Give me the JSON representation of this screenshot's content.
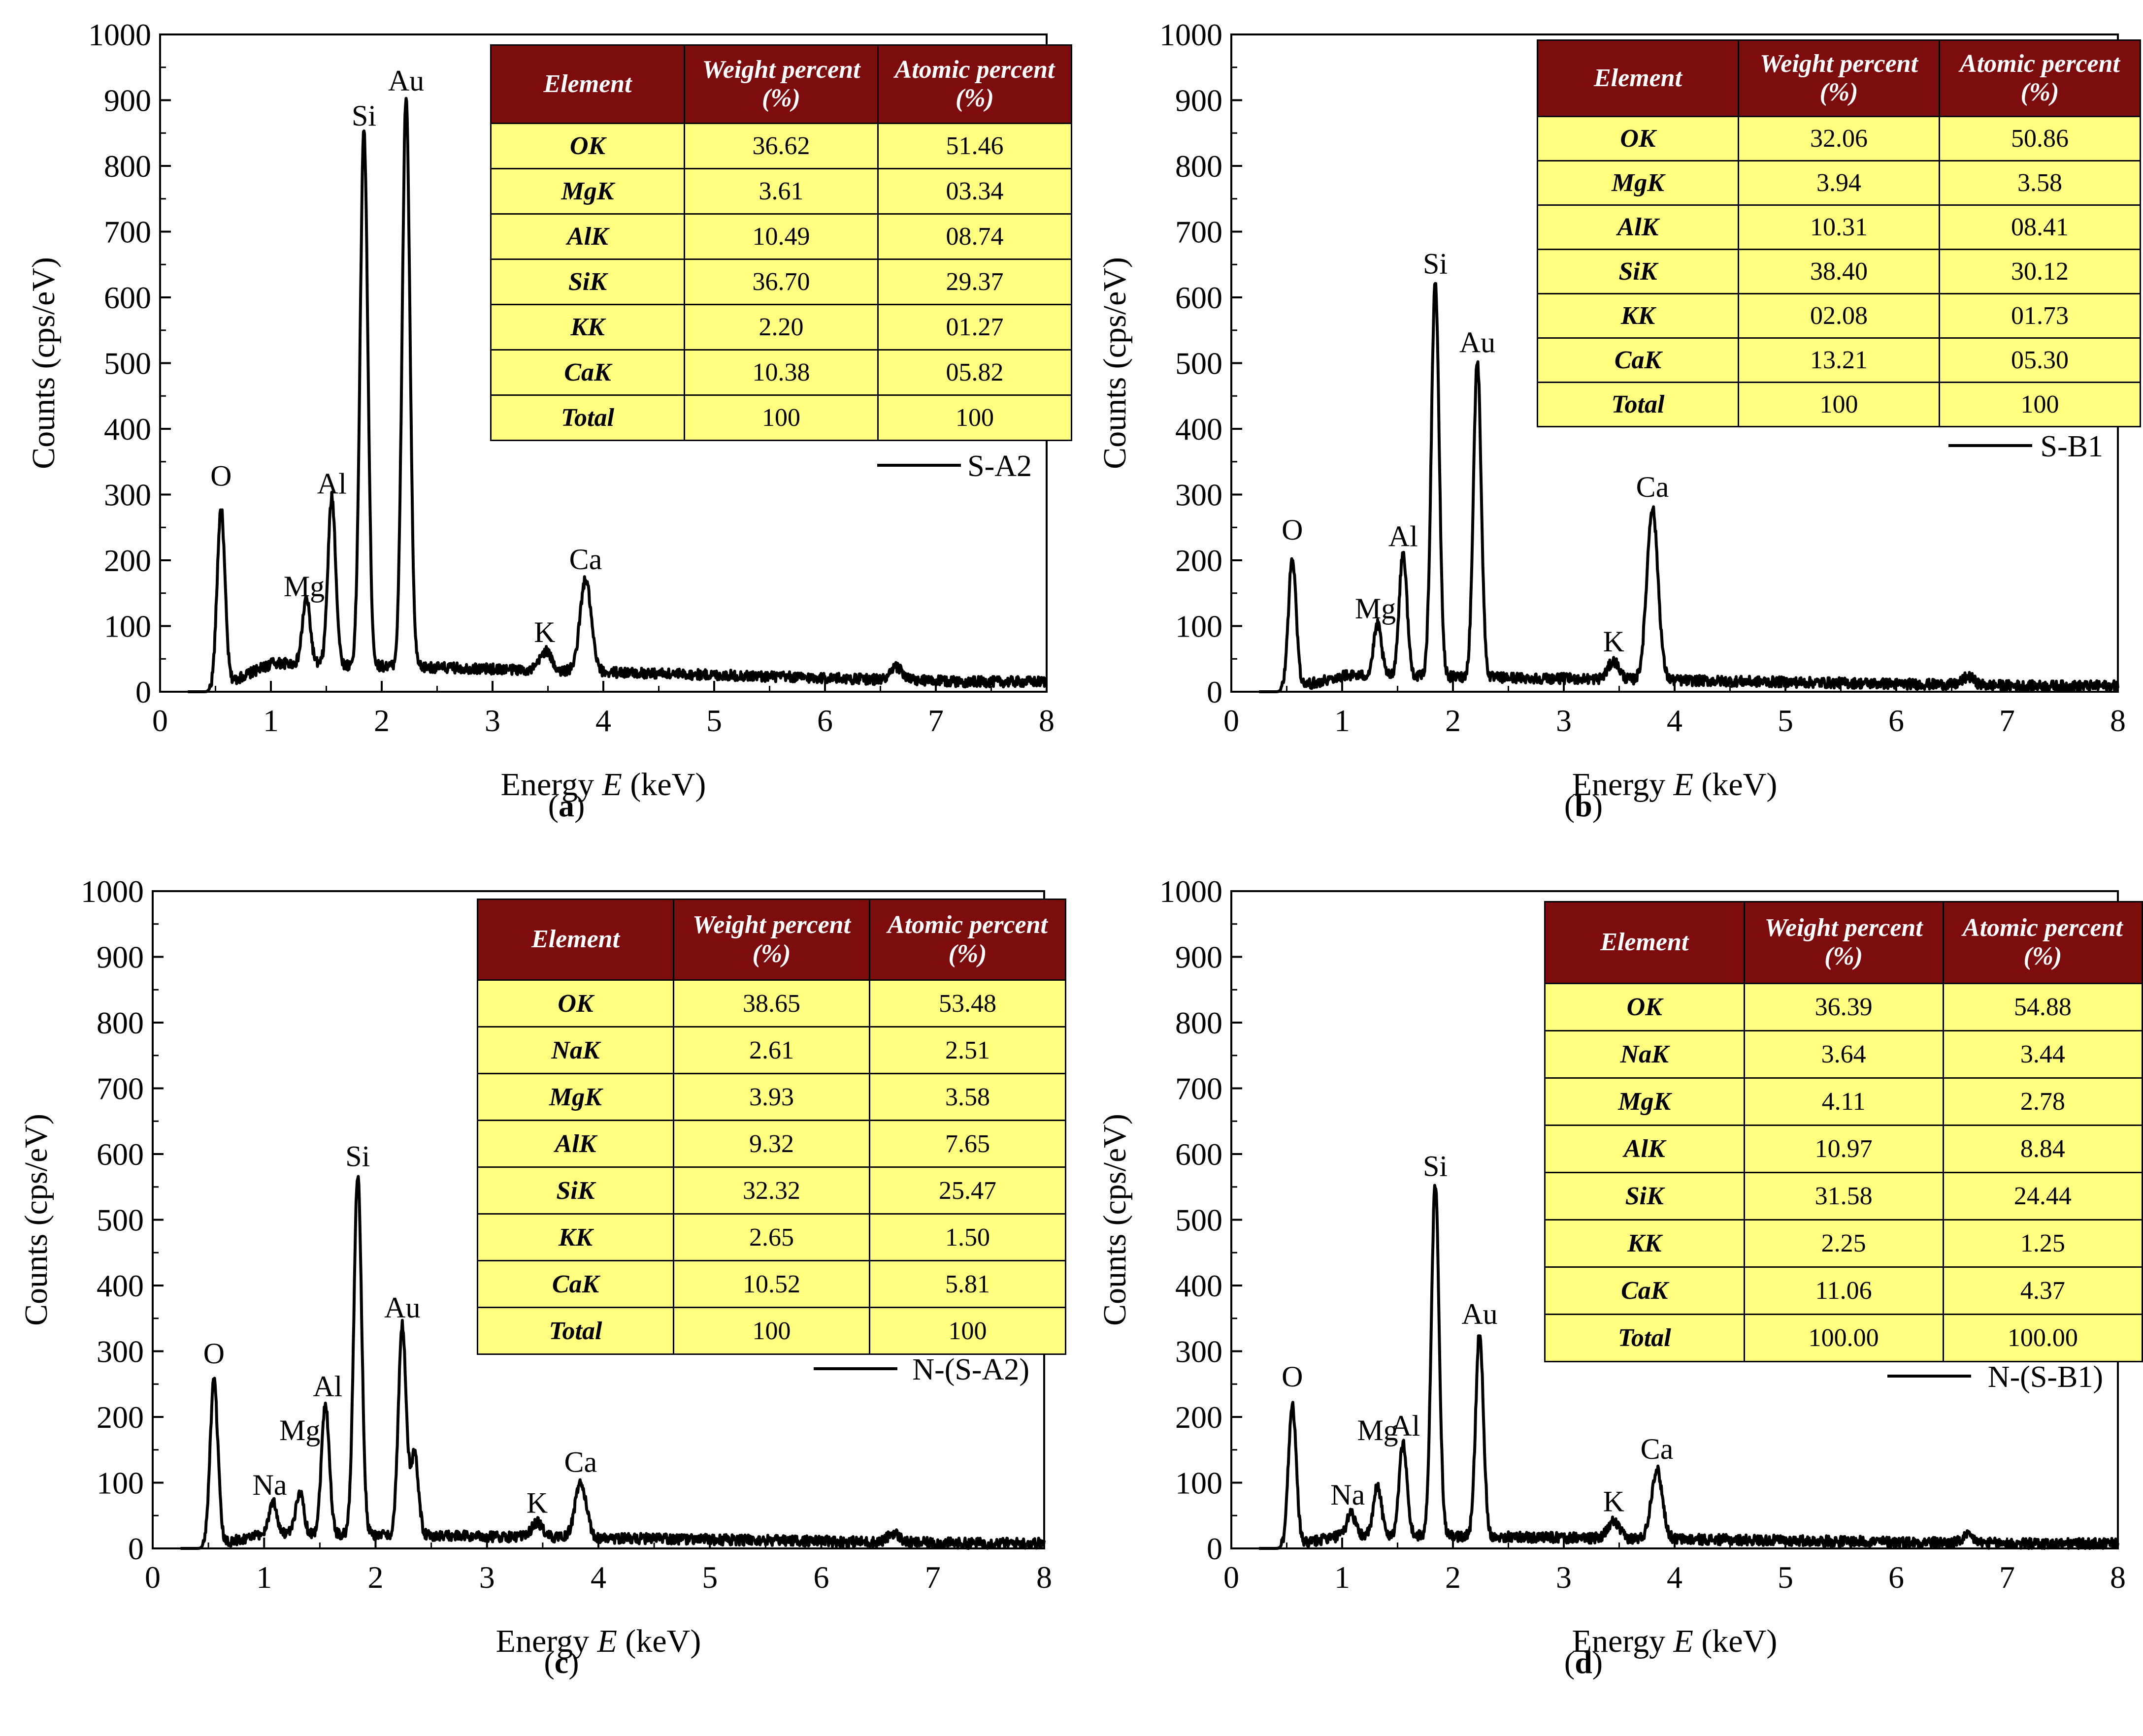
{
  "chart_data": [
    {
      "type": "line",
      "panel_label": "a",
      "xlabel_prefix": "Energy",
      "xlabel_var": "E",
      "xlabel_unit": "(keV)",
      "ylabel": "Counts (cps/eV)",
      "xlim": [
        0,
        8
      ],
      "ylim": [
        0,
        1000
      ],
      "xticks": [
        0,
        1,
        2,
        3,
        4,
        5,
        6,
        7,
        8
      ],
      "yticks": [
        0,
        100,
        200,
        300,
        400,
        500,
        600,
        700,
        800,
        900,
        1000
      ],
      "legend_position": "right",
      "series": [
        {
          "name": "S-A2",
          "peaks": [
            [
              0.55,
              300
            ],
            [
              1.32,
              130
            ],
            [
              1.55,
              285
            ],
            [
              1.84,
              845
            ],
            [
              2.22,
              898
            ],
            [
              3.48,
              60
            ],
            [
              3.84,
              170
            ],
            [
              6.65,
              50
            ]
          ],
          "baseline": 38
        }
      ],
      "peak_labels": [
        {
          "text": "O",
          "x": 0.55,
          "y": 300
        },
        {
          "text": "Mg",
          "x": 1.3,
          "y": 132
        },
        {
          "text": "Al",
          "x": 1.55,
          "y": 288
        },
        {
          "text": "Si",
          "x": 1.84,
          "y": 848
        },
        {
          "text": "Au",
          "x": 2.22,
          "y": 901
        },
        {
          "text": "K",
          "x": 3.47,
          "y": 62
        },
        {
          "text": "Ca",
          "x": 3.84,
          "y": 173
        }
      ],
      "table": {
        "headers": [
          "Element",
          "Weight percent (%)",
          "Atomic percent (%)"
        ],
        "rows": [
          [
            "OK",
            "36.62",
            "51.46"
          ],
          [
            "MgK",
            "3.61",
            "03.34"
          ],
          [
            "AlK",
            "10.49",
            "08.74"
          ],
          [
            "SiK",
            "36.70",
            "29.37"
          ],
          [
            "KK",
            "2.20",
            "01.27"
          ],
          [
            "CaK",
            "10.38",
            "05.82"
          ],
          [
            "Total",
            "100",
            "100"
          ]
        ]
      }
    },
    {
      "type": "line",
      "panel_label": "b",
      "xlabel_prefix": "Energy",
      "xlabel_var": "E",
      "xlabel_unit": "(keV)",
      "ylabel": "Counts (cps/eV)",
      "xlim": [
        0,
        8
      ],
      "ylim": [
        0,
        1000
      ],
      "xticks": [
        0,
        1,
        2,
        3,
        4,
        5,
        6,
        7,
        8
      ],
      "yticks": [
        0,
        100,
        200,
        300,
        400,
        500,
        600,
        700,
        800,
        900,
        1000
      ],
      "legend_position": "right",
      "series": [
        {
          "name": "S-B1",
          "peaks": [
            [
              0.55,
              215
            ],
            [
              1.32,
              95
            ],
            [
              1.55,
              205
            ],
            [
              1.84,
              620
            ],
            [
              2.22,
              500
            ],
            [
              3.45,
              45
            ],
            [
              3.8,
              280
            ],
            [
              6.65,
              30
            ]
          ],
          "baseline": 22
        }
      ],
      "peak_labels": [
        {
          "text": "O",
          "x": 0.55,
          "y": 218
        },
        {
          "text": "Mg",
          "x": 1.3,
          "y": 98
        },
        {
          "text": "Al",
          "x": 1.55,
          "y": 208
        },
        {
          "text": "Si",
          "x": 1.84,
          "y": 623
        },
        {
          "text": "Au",
          "x": 2.22,
          "y": 503
        },
        {
          "text": "K",
          "x": 3.45,
          "y": 48
        },
        {
          "text": "Ca",
          "x": 3.8,
          "y": 283
        }
      ],
      "table": {
        "headers": [
          "Element",
          "Weight percent (%)",
          "Atomic percent (%)"
        ],
        "rows": [
          [
            "OK",
            "32.06",
            "50.86"
          ],
          [
            "MgK",
            "3.94",
            "3.58"
          ],
          [
            "AlK",
            "10.31",
            "08.41"
          ],
          [
            "SiK",
            "38.40",
            "30.12"
          ],
          [
            "KK",
            "02.08",
            "01.73"
          ],
          [
            "CaK",
            "13.21",
            "05.30"
          ],
          [
            "Total",
            "100",
            "100"
          ]
        ]
      }
    },
    {
      "type": "line",
      "panel_label": "c",
      "xlabel_prefix": "Energy",
      "xlabel_var": "E",
      "xlabel_unit": "(keV)",
      "ylabel": "Counts (cps/eV)",
      "xlim": [
        0,
        8
      ],
      "ylim": [
        0,
        1000
      ],
      "xticks": [
        0,
        1,
        2,
        3,
        4,
        5,
        6,
        7,
        8
      ],
      "yticks": [
        0,
        100,
        200,
        300,
        400,
        500,
        600,
        700,
        800,
        900,
        1000
      ],
      "legend_position": "right",
      "series": [
        {
          "name": "N-(S-A2)",
          "peaks": [
            [
              0.55,
              265
            ],
            [
              1.08,
              65
            ],
            [
              1.32,
              80
            ],
            [
              1.55,
              215
            ],
            [
              1.84,
              565
            ],
            [
              2.24,
              335
            ],
            [
              2.35,
              140
            ],
            [
              3.45,
              38
            ],
            [
              3.84,
              100
            ],
            [
              6.65,
              30
            ]
          ],
          "baseline": 20
        }
      ],
      "peak_labels": [
        {
          "text": "O",
          "x": 0.55,
          "y": 268
        },
        {
          "text": "Na",
          "x": 1.05,
          "y": 68
        },
        {
          "text": "Mg",
          "x": 1.32,
          "y": 150
        },
        {
          "text": "Al",
          "x": 1.57,
          "y": 218
        },
        {
          "text": "Si",
          "x": 1.84,
          "y": 568
        },
        {
          "text": "Au",
          "x": 2.24,
          "y": 338
        },
        {
          "text": "K",
          "x": 3.45,
          "y": 41
        },
        {
          "text": "Ca",
          "x": 3.84,
          "y": 103
        }
      ],
      "table": {
        "headers": [
          "Element",
          "Weight percent (%)",
          "Atomic percent (%)"
        ],
        "rows": [
          [
            "OK",
            "38.65",
            "53.48"
          ],
          [
            "NaK",
            "2.61",
            "2.51"
          ],
          [
            "MgK",
            "3.93",
            "3.58"
          ],
          [
            "AlK",
            "9.32",
            "7.65"
          ],
          [
            "SiK",
            "32.32",
            "25.47"
          ],
          [
            "KK",
            "2.65",
            "1.50"
          ],
          [
            "CaK",
            "10.52",
            "5.81"
          ],
          [
            "Total",
            "100",
            "100"
          ]
        ]
      }
    },
    {
      "type": "line",
      "panel_label": "d",
      "xlabel_prefix": "Energy",
      "xlabel_var": "E",
      "xlabel_unit": "(keV)",
      "ylabel": "Counts (cps/eV)",
      "xlim": [
        0,
        8
      ],
      "ylim": [
        0,
        1000
      ],
      "xticks": [
        0,
        1,
        2,
        3,
        4,
        5,
        6,
        7,
        8
      ],
      "yticks": [
        0,
        100,
        200,
        300,
        400,
        500,
        600,
        700,
        800,
        900,
        1000
      ],
      "legend_position": "right",
      "series": [
        {
          "name": "N-(S-B1)",
          "peaks": [
            [
              0.55,
              230
            ],
            [
              1.08,
              50
            ],
            [
              1.32,
              90
            ],
            [
              1.55,
              155
            ],
            [
              1.84,
              550
            ],
            [
              2.24,
              325
            ],
            [
              3.45,
              40
            ],
            [
              3.84,
              120
            ],
            [
              6.65,
              25
            ]
          ],
          "baseline": 18
        }
      ],
      "peak_labels": [
        {
          "text": "O",
          "x": 0.55,
          "y": 233
        },
        {
          "text": "Na",
          "x": 1.05,
          "y": 53
        },
        {
          "text": "Mg",
          "x": 1.32,
          "y": 150
        },
        {
          "text": "Al",
          "x": 1.57,
          "y": 158
        },
        {
          "text": "Si",
          "x": 1.84,
          "y": 553
        },
        {
          "text": "Au",
          "x": 2.24,
          "y": 328
        },
        {
          "text": "K",
          "x": 3.45,
          "y": 43
        },
        {
          "text": "Ca",
          "x": 3.84,
          "y": 123
        }
      ],
      "table": {
        "headers": [
          "Element",
          "Weight percent (%)",
          "Atomic percent (%)"
        ],
        "rows": [
          [
            "OK",
            "36.39",
            "54.88"
          ],
          [
            "NaK",
            "3.64",
            "3.44"
          ],
          [
            "MgK",
            "4.11",
            "2.78"
          ],
          [
            "AlK",
            "10.97",
            "8.84"
          ],
          [
            "SiK",
            "31.58",
            "24.44"
          ],
          [
            "KK",
            "2.25",
            "1.25"
          ],
          [
            "CaK",
            "11.06",
            "4.37"
          ],
          [
            "Total",
            "100.00",
            "100.00"
          ]
        ]
      }
    }
  ],
  "colors": {
    "line": "#000000",
    "table_header": "#7d0c0c",
    "table_body": "#ffff80"
  }
}
